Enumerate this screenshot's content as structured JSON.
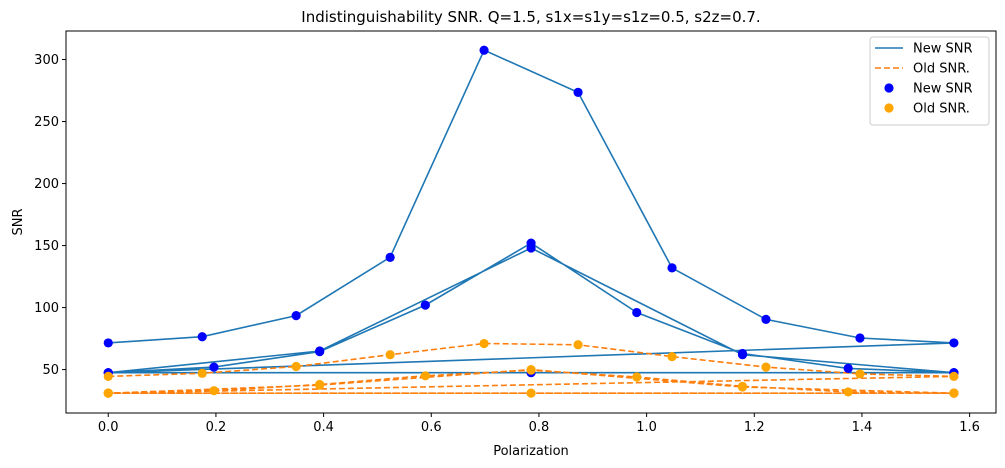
{
  "chart_data": {
    "type": "line",
    "title": "Indistinguishability SNR. Q=1.5, s1x=s1y=s1z=0.5, s2z=0.7.",
    "xlabel": "Polarization",
    "ylabel": "SNR",
    "xlim": [
      -0.0785,
      1.649
    ],
    "ylim": [
      15,
      323
    ],
    "xticks": [
      0.0,
      0.2,
      0.4,
      0.6,
      0.8,
      1.0,
      1.2,
      1.4,
      1.6
    ],
    "xtick_labels": [
      "0.0",
      "0.2",
      "0.4",
      "0.6",
      "0.8",
      "1.0",
      "1.2",
      "1.4",
      "1.6"
    ],
    "yticks": [
      50,
      100,
      150,
      200,
      250,
      300
    ],
    "ytick_labels": [
      "50",
      "100",
      "150",
      "200",
      "250",
      "300"
    ],
    "grid": false,
    "legend_position": "top-right",
    "series": [
      {
        "name": "New SNR",
        "style": "line",
        "color": "#1f77b4",
        "x": [
          0.0,
          0.1745,
          0.349,
          0.5236,
          0.6981,
          0.8727,
          1.0472,
          1.2217,
          1.3963,
          1.5708,
          0.0,
          0.1963,
          0.3927,
          0.589,
          0.7854,
          0.9817,
          1.1781,
          1.3744,
          1.5708,
          0.0,
          0.3927,
          0.7854,
          1.1781,
          1.5708,
          0.0,
          0.7854,
          1.5708
        ],
        "y": [
          71.5,
          76.5,
          93.5,
          140.5,
          307.5,
          273.5,
          132,
          90.5,
          75.5,
          71.5,
          47.5,
          52,
          64.5,
          102,
          152,
          96,
          63,
          51,
          47.5,
          47.5,
          65,
          148,
          62,
          47.5,
          47.5,
          47.5,
          47.5
        ]
      },
      {
        "name": "Old SNR.",
        "style": "dashed",
        "color": "#ff7f0e",
        "x": [
          0.0,
          0.1745,
          0.349,
          0.5236,
          0.6981,
          0.8727,
          1.0472,
          1.2217,
          1.3963,
          1.5708,
          0.0,
          0.1963,
          0.3927,
          0.589,
          0.7854,
          0.9817,
          1.1781,
          1.3744,
          1.5708,
          0.0,
          0.3927,
          0.7854,
          1.1781,
          1.5708,
          0.0,
          0.7854,
          1.5708
        ],
        "y": [
          44.5,
          47,
          52.5,
          62,
          71,
          70,
          60.5,
          52,
          46.5,
          44.5,
          31,
          33,
          38,
          45,
          49.5,
          44,
          36.5,
          32,
          31,
          31,
          37.5,
          50,
          36,
          31,
          31,
          31,
          31
        ]
      },
      {
        "name": "New SNR",
        "style": "scatter",
        "color": "#0000ff",
        "x": [
          0.0,
          0.1745,
          0.349,
          0.5236,
          0.6981,
          0.8727,
          1.0472,
          1.2217,
          1.3963,
          1.5708,
          0.0,
          0.1963,
          0.3927,
          0.589,
          0.7854,
          0.9817,
          1.1781,
          1.3744,
          1.5708,
          0.0,
          0.3927,
          0.7854,
          1.1781,
          1.5708,
          0.0,
          0.7854,
          1.5708
        ],
        "y": [
          71.5,
          76.5,
          93.5,
          140.5,
          307.5,
          273.5,
          132,
          90.5,
          75.5,
          71.5,
          47.5,
          52,
          64.5,
          102,
          152,
          96,
          63,
          51,
          47.5,
          47.5,
          65,
          148,
          62,
          47.5,
          47.5,
          47.5,
          47.5
        ]
      },
      {
        "name": "Old SNR.",
        "style": "scatter",
        "color": "#ffa500",
        "x": [
          0.0,
          0.1745,
          0.349,
          0.5236,
          0.6981,
          0.8727,
          1.0472,
          1.2217,
          1.3963,
          1.5708,
          0.0,
          0.1963,
          0.3927,
          0.589,
          0.7854,
          0.9817,
          1.1781,
          1.3744,
          1.5708,
          0.0,
          0.3927,
          0.7854,
          1.1781,
          1.5708,
          0.0,
          0.7854,
          1.5708
        ],
        "y": [
          44.5,
          47,
          52.5,
          62,
          71,
          70,
          60.5,
          52,
          46.5,
          44.5,
          31,
          33,
          38,
          45,
          49.5,
          44,
          36.5,
          32,
          31,
          31,
          37.5,
          50,
          36,
          31,
          31,
          31,
          31
        ]
      }
    ]
  }
}
